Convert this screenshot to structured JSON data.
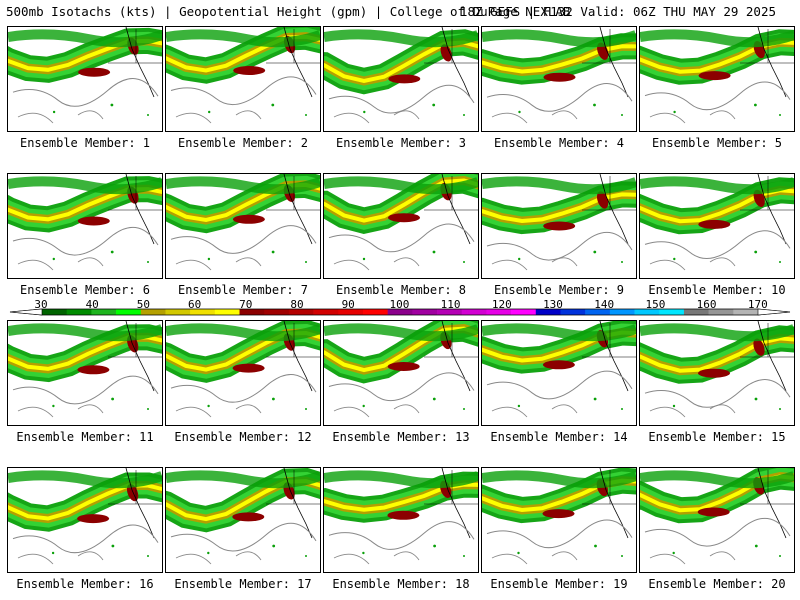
{
  "header": {
    "left": "500mb Isotachs (kts) | Geopotential Height (gpm) | College of DuPage NEXLAB",
    "right": "18Z GEFS | F132 Valid: 06Z THU MAY 29 2025"
  },
  "panels": [
    {
      "label": "Ensemble Member: 1"
    },
    {
      "label": "Ensemble Member: 2"
    },
    {
      "label": "Ensemble Member: 3"
    },
    {
      "label": "Ensemble Member: 4"
    },
    {
      "label": "Ensemble Member: 5"
    },
    {
      "label": "Ensemble Member: 6"
    },
    {
      "label": "Ensemble Member: 7"
    },
    {
      "label": "Ensemble Member: 8"
    },
    {
      "label": "Ensemble Member: 9"
    },
    {
      "label": "Ensemble Member: 10"
    },
    {
      "label": "Ensemble Member: 11"
    },
    {
      "label": "Ensemble Member: 12"
    },
    {
      "label": "Ensemble Member: 13"
    },
    {
      "label": "Ensemble Member: 14"
    },
    {
      "label": "Ensemble Member: 15"
    },
    {
      "label": "Ensemble Member: 16"
    },
    {
      "label": "Ensemble Member: 17"
    },
    {
      "label": "Ensemble Member: 18"
    },
    {
      "label": "Ensemble Member: 19"
    },
    {
      "label": "Ensemble Member: 20"
    }
  ],
  "colorbar": {
    "ticks": [
      "30",
      "40",
      "50",
      "60",
      "70",
      "80",
      "90",
      "100",
      "110",
      "120",
      "130",
      "140",
      "150",
      "160",
      "170"
    ],
    "colors": [
      "#006400",
      "#008c00",
      "#1eb41e",
      "#00ff00",
      "#b4a000",
      "#d2c800",
      "#f0e000",
      "#ffff00",
      "#8c0000",
      "#a00000",
      "#b40000",
      "#d20000",
      "#e60000",
      "#ff0000",
      "#8c008c",
      "#a000a0",
      "#b400b4",
      "#d200d2",
      "#e600e6",
      "#ff00ff",
      "#0000c8",
      "#0032dc",
      "#0064f0",
      "#0096ff",
      "#00c8ff",
      "#00e6ff",
      "#787878",
      "#969696",
      "#b4b4b4"
    ]
  }
}
